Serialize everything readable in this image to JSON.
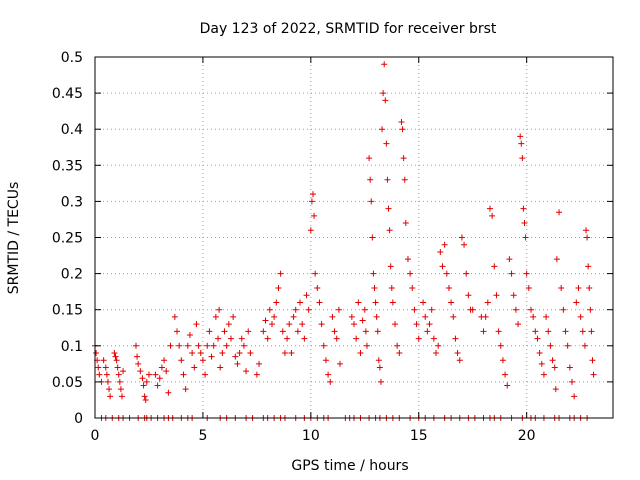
{
  "chart_data": {
    "type": "scatter",
    "title": "Day 123 of 2022, SRMTID for receiver brst",
    "xlabel": "GPS time / hours",
    "ylabel": "SRMTID / TECUs",
    "xlim": [
      0,
      24
    ],
    "ylim": [
      0,
      0.5
    ],
    "x_ticks": [
      0,
      5,
      10,
      15,
      20
    ],
    "x_tick_labels": [
      "0",
      "5",
      "10",
      "15",
      "20"
    ],
    "y_ticks": [
      0,
      0.05,
      0.1,
      0.15,
      0.2,
      0.25,
      0.3,
      0.35,
      0.4,
      0.45,
      0.5
    ],
    "y_tick_labels": [
      "0",
      "0.05",
      "0.1",
      "0.15",
      "0.2",
      "0.25",
      "0.3",
      "0.35",
      "0.4",
      "0.45",
      "0.5"
    ],
    "grid": true,
    "marker": "+",
    "color": "#e00000",
    "series": [
      {
        "name": "SRMTID",
        "points": [
          [
            0.0,
            0.1
          ],
          [
            0.05,
            0.09
          ],
          [
            0.1,
            0.08
          ],
          [
            0.15,
            0.07
          ],
          [
            0.2,
            0.06
          ],
          [
            0.3,
            0.05
          ],
          [
            0.4,
            0.08
          ],
          [
            0.5,
            0.07
          ],
          [
            0.55,
            0.06
          ],
          [
            0.6,
            0.05
          ],
          [
            0.65,
            0.04
          ],
          [
            0.7,
            0.03
          ],
          [
            0.9,
            0.09
          ],
          [
            0.95,
            0.085
          ],
          [
            1.0,
            0.08
          ],
          [
            1.05,
            0.07
          ],
          [
            1.1,
            0.06
          ],
          [
            1.15,
            0.05
          ],
          [
            1.2,
            0.04
          ],
          [
            1.25,
            0.03
          ],
          [
            1.3,
            0.065
          ],
          [
            1.9,
            0.1
          ],
          [
            1.95,
            0.085
          ],
          [
            2.0,
            0.075
          ],
          [
            2.1,
            0.065
          ],
          [
            2.2,
            0.055
          ],
          [
            2.25,
            0.045
          ],
          [
            2.3,
            0.03
          ],
          [
            2.35,
            0.025
          ],
          [
            2.4,
            0.05
          ],
          [
            2.5,
            0.06
          ],
          [
            2.8,
            0.06
          ],
          [
            2.9,
            0.045
          ],
          [
            3.0,
            0.055
          ],
          [
            3.1,
            0.07
          ],
          [
            3.2,
            0.08
          ],
          [
            3.3,
            0.065
          ],
          [
            3.4,
            0.035
          ],
          [
            3.5,
            0.1
          ],
          [
            3.7,
            0.14
          ],
          [
            3.8,
            0.12
          ],
          [
            3.9,
            0.1
          ],
          [
            4.0,
            0.08
          ],
          [
            4.1,
            0.06
          ],
          [
            4.2,
            0.04
          ],
          [
            4.3,
            0.1
          ],
          [
            4.4,
            0.115
          ],
          [
            4.5,
            0.09
          ],
          [
            4.6,
            0.07
          ],
          [
            4.7,
            0.13
          ],
          [
            4.8,
            0.1
          ],
          [
            4.9,
            0.09
          ],
          [
            5.0,
            0.08
          ],
          [
            5.1,
            0.06
          ],
          [
            5.2,
            0.1
          ],
          [
            5.3,
            0.12
          ],
          [
            5.4,
            0.085
          ],
          [
            5.5,
            0.1
          ],
          [
            5.6,
            0.14
          ],
          [
            5.7,
            0.11
          ],
          [
            5.75,
            0.15
          ],
          [
            5.8,
            0.07
          ],
          [
            5.9,
            0.09
          ],
          [
            6.0,
            0.12
          ],
          [
            6.1,
            0.1
          ],
          [
            6.2,
            0.13
          ],
          [
            6.3,
            0.11
          ],
          [
            6.4,
            0.14
          ],
          [
            6.5,
            0.085
          ],
          [
            6.6,
            0.075
          ],
          [
            6.7,
            0.09
          ],
          [
            6.8,
            0.11
          ],
          [
            6.9,
            0.1
          ],
          [
            7.0,
            0.065
          ],
          [
            7.1,
            0.12
          ],
          [
            7.2,
            0.09
          ],
          [
            7.5,
            0.06
          ],
          [
            7.6,
            0.075
          ],
          [
            7.8,
            0.12
          ],
          [
            7.9,
            0.135
          ],
          [
            8.0,
            0.11
          ],
          [
            8.1,
            0.15
          ],
          [
            8.2,
            0.13
          ],
          [
            8.3,
            0.14
          ],
          [
            8.4,
            0.16
          ],
          [
            8.5,
            0.18
          ],
          [
            8.6,
            0.2
          ],
          [
            8.7,
            0.12
          ],
          [
            8.8,
            0.09
          ],
          [
            8.9,
            0.11
          ],
          [
            9.0,
            0.13
          ],
          [
            9.1,
            0.09
          ],
          [
            9.2,
            0.14
          ],
          [
            9.3,
            0.15
          ],
          [
            9.4,
            0.12
          ],
          [
            9.5,
            0.16
          ],
          [
            9.6,
            0.13
          ],
          [
            9.7,
            0.11
          ],
          [
            9.8,
            0.17
          ],
          [
            9.9,
            0.15
          ],
          [
            10.0,
            0.26
          ],
          [
            10.05,
            0.3
          ],
          [
            10.1,
            0.31
          ],
          [
            10.15,
            0.28
          ],
          [
            10.2,
            0.2
          ],
          [
            10.3,
            0.18
          ],
          [
            10.4,
            0.16
          ],
          [
            10.5,
            0.13
          ],
          [
            10.6,
            0.1
          ],
          [
            10.7,
            0.08
          ],
          [
            10.8,
            0.06
          ],
          [
            10.9,
            0.05
          ],
          [
            11.0,
            0.14
          ],
          [
            11.1,
            0.12
          ],
          [
            11.2,
            0.11
          ],
          [
            11.3,
            0.15
          ],
          [
            11.35,
            0.075
          ],
          [
            11.9,
            0.14
          ],
          [
            12.0,
            0.13
          ],
          [
            12.1,
            0.11
          ],
          [
            12.2,
            0.16
          ],
          [
            12.3,
            0.09
          ],
          [
            12.4,
            0.135
          ],
          [
            12.5,
            0.15
          ],
          [
            12.55,
            0.12
          ],
          [
            12.6,
            0.1
          ],
          [
            12.7,
            0.36
          ],
          [
            12.75,
            0.33
          ],
          [
            12.8,
            0.3
          ],
          [
            12.85,
            0.25
          ],
          [
            12.9,
            0.2
          ],
          [
            12.95,
            0.18
          ],
          [
            13.0,
            0.16
          ],
          [
            13.05,
            0.14
          ],
          [
            13.1,
            0.12
          ],
          [
            13.15,
            0.08
          ],
          [
            13.2,
            0.07
          ],
          [
            13.25,
            0.05
          ],
          [
            13.3,
            0.4
          ],
          [
            13.35,
            0.45
          ],
          [
            13.4,
            0.49
          ],
          [
            13.45,
            0.44
          ],
          [
            13.5,
            0.38
          ],
          [
            13.55,
            0.33
          ],
          [
            13.6,
            0.29
          ],
          [
            13.65,
            0.26
          ],
          [
            13.7,
            0.21
          ],
          [
            13.75,
            0.18
          ],
          [
            13.8,
            0.16
          ],
          [
            13.9,
            0.13
          ],
          [
            14.0,
            0.1
          ],
          [
            14.1,
            0.09
          ],
          [
            14.2,
            0.41
          ],
          [
            14.25,
            0.4
          ],
          [
            14.3,
            0.36
          ],
          [
            14.35,
            0.33
          ],
          [
            14.4,
            0.27
          ],
          [
            14.5,
            0.22
          ],
          [
            14.6,
            0.2
          ],
          [
            14.7,
            0.18
          ],
          [
            14.8,
            0.15
          ],
          [
            14.9,
            0.13
          ],
          [
            15.0,
            0.11
          ],
          [
            15.2,
            0.16
          ],
          [
            15.3,
            0.14
          ],
          [
            15.4,
            0.12
          ],
          [
            15.5,
            0.13
          ],
          [
            15.6,
            0.15
          ],
          [
            15.7,
            0.11
          ],
          [
            15.8,
            0.09
          ],
          [
            15.9,
            0.1
          ],
          [
            16.0,
            0.23
          ],
          [
            16.1,
            0.21
          ],
          [
            16.2,
            0.24
          ],
          [
            16.3,
            0.2
          ],
          [
            16.4,
            0.18
          ],
          [
            16.5,
            0.16
          ],
          [
            16.6,
            0.14
          ],
          [
            16.7,
            0.11
          ],
          [
            16.8,
            0.09
          ],
          [
            16.9,
            0.08
          ],
          [
            17.0,
            0.25
          ],
          [
            17.1,
            0.24
          ],
          [
            17.2,
            0.2
          ],
          [
            17.3,
            0.17
          ],
          [
            17.4,
            0.15
          ],
          [
            17.5,
            0.15
          ],
          [
            17.9,
            0.14
          ],
          [
            18.0,
            0.12
          ],
          [
            18.1,
            0.14
          ],
          [
            18.2,
            0.16
          ],
          [
            18.3,
            0.29
          ],
          [
            18.4,
            0.28
          ],
          [
            18.5,
            0.21
          ],
          [
            18.6,
            0.17
          ],
          [
            18.7,
            0.12
          ],
          [
            18.8,
            0.1
          ],
          [
            18.9,
            0.08
          ],
          [
            19.0,
            0.06
          ],
          [
            19.1,
            0.045
          ],
          [
            19.2,
            0.22
          ],
          [
            19.3,
            0.2
          ],
          [
            19.4,
            0.17
          ],
          [
            19.5,
            0.15
          ],
          [
            19.6,
            0.13
          ],
          [
            19.7,
            0.39
          ],
          [
            19.75,
            0.38
          ],
          [
            19.8,
            0.36
          ],
          [
            19.85,
            0.29
          ],
          [
            19.9,
            0.27
          ],
          [
            19.95,
            0.25
          ],
          [
            20.0,
            0.2
          ],
          [
            20.1,
            0.18
          ],
          [
            20.2,
            0.15
          ],
          [
            20.3,
            0.14
          ],
          [
            20.4,
            0.12
          ],
          [
            20.5,
            0.11
          ],
          [
            20.6,
            0.09
          ],
          [
            20.7,
            0.075
          ],
          [
            20.8,
            0.06
          ],
          [
            20.9,
            0.14
          ],
          [
            21.0,
            0.12
          ],
          [
            21.1,
            0.1
          ],
          [
            21.2,
            0.08
          ],
          [
            21.3,
            0.07
          ],
          [
            21.35,
            0.04
          ],
          [
            21.4,
            0.22
          ],
          [
            21.5,
            0.285
          ],
          [
            21.6,
            0.18
          ],
          [
            21.7,
            0.15
          ],
          [
            21.8,
            0.12
          ],
          [
            21.9,
            0.1
          ],
          [
            22.0,
            0.07
          ],
          [
            22.1,
            0.05
          ],
          [
            22.2,
            0.03
          ],
          [
            22.3,
            0.16
          ],
          [
            22.4,
            0.18
          ],
          [
            22.5,
            0.14
          ],
          [
            22.6,
            0.12
          ],
          [
            22.7,
            0.1
          ],
          [
            22.75,
            0.26
          ],
          [
            22.8,
            0.25
          ],
          [
            22.85,
            0.21
          ],
          [
            22.9,
            0.18
          ],
          [
            22.95,
            0.15
          ],
          [
            23.0,
            0.12
          ],
          [
            23.05,
            0.08
          ],
          [
            23.1,
            0.06
          ]
        ]
      }
    ],
    "zero_markers": [
      0.3,
      0.5,
      0.8,
      1.1,
      1.3,
      1.6,
      2.0,
      2.3,
      2.4,
      2.6,
      2.9,
      3.2,
      3.4,
      3.6,
      4.0,
      4.3,
      4.5,
      5.2,
      5.8,
      6.1,
      6.5,
      7.0,
      7.3,
      7.8,
      8.0,
      8.3,
      8.6,
      8.8,
      9.3,
      9.7,
      10.0,
      10.3,
      10.6,
      10.8,
      11.6,
      11.8,
      12.0,
      12.3,
      12.7,
      13.0,
      13.2,
      13.5,
      13.8,
      14.1,
      14.6,
      15.0,
      15.3,
      15.7,
      16.2,
      16.5,
      16.9,
      17.3,
      17.6,
      18.0,
      18.3,
      18.5,
      18.8,
      19.3,
      19.8,
      20.2,
      20.4,
      20.8,
      21.3,
      21.5,
      22.0,
      22.2,
      22.5,
      22.8
    ]
  }
}
